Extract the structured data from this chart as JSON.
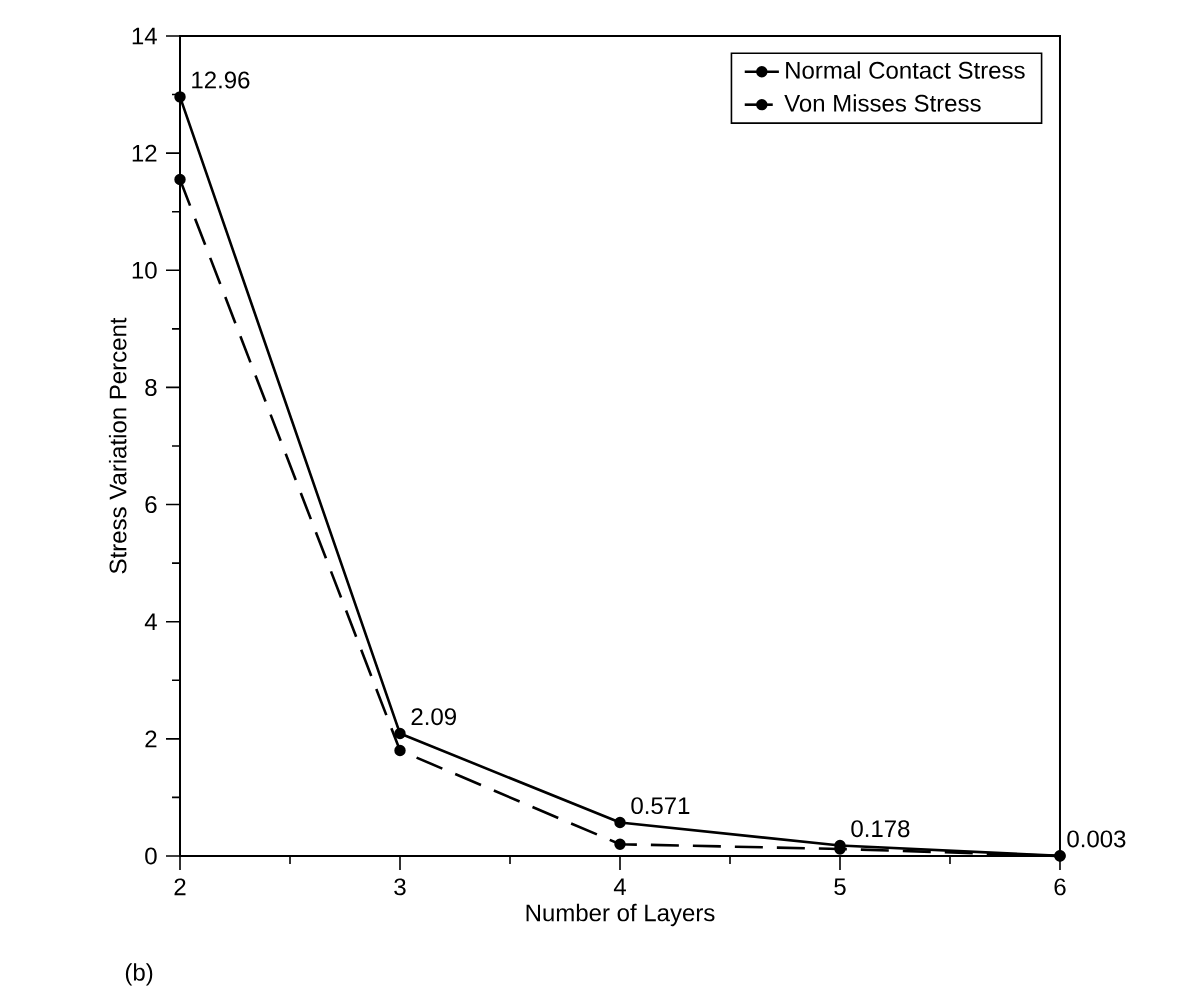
{
  "chart_data": {
    "type": "line",
    "xlabel": "Number of Layers",
    "ylabel": "Stress Variation Percent",
    "x": [
      2,
      3,
      4,
      5,
      6
    ],
    "xlim": [
      2,
      6
    ],
    "xticks": [
      2,
      3,
      4,
      5,
      6
    ],
    "ylim": [
      0,
      14
    ],
    "yticks": [
      0,
      2,
      4,
      6,
      8,
      10,
      12,
      14
    ],
    "series": [
      {
        "name": "Normal Contact Stress",
        "color": "#000000",
        "line_style": "solid",
        "values": [
          12.96,
          2.09,
          0.571,
          0.178,
          0.003
        ],
        "value_labels": [
          "12.96",
          "2.09",
          "0.571",
          "0.178",
          "0.003"
        ]
      },
      {
        "name": "Von Misses Stress",
        "color": "#000000",
        "line_style": "dashed",
        "values": [
          11.55,
          1.8,
          0.2,
          0.12,
          0
        ]
      }
    ],
    "marker": "circle",
    "legend": "top right",
    "grid": false,
    "annotations": [
      "(b)"
    ]
  }
}
